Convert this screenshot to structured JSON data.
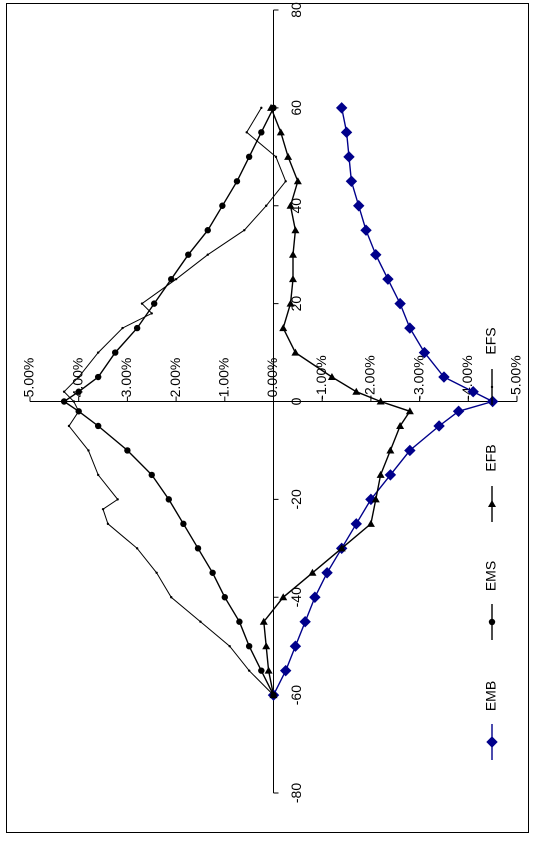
{
  "chart_data": {
    "type": "line",
    "orientation": "rotated-90-clockwise",
    "x_axis": {
      "min": -80,
      "max": 80,
      "ticks": [
        -80,
        -60,
        -40,
        -20,
        0,
        20,
        40,
        60,
        80
      ],
      "tick_labels": [
        "-80",
        "-60",
        "-40",
        "-20",
        "0",
        "20",
        "40",
        "60",
        "80"
      ]
    },
    "y_axis": {
      "min": -0.05,
      "max": 0.05,
      "ticks": [
        0.05,
        0.04,
        0.03,
        0.02,
        0.01,
        0.0,
        -0.01,
        -0.02,
        -0.03,
        -0.04,
        -0.05
      ],
      "tick_labels": [
        "5.00%",
        "4.00%",
        "3.00%",
        "2.00%",
        "1.00%",
        "0.00%",
        "-1.00%",
        "-2.00%",
        "-3.00%",
        "-4.00%",
        "-5.00%"
      ]
    },
    "grid": false,
    "legend_position": "right",
    "series": [
      {
        "name": "EMB",
        "color": "#00008B",
        "marker": "diamond",
        "x": [
          -60,
          -55,
          -50,
          -45,
          -40,
          -35,
          -30,
          -25,
          -20,
          -15,
          -10,
          -5,
          -2,
          0,
          2,
          5,
          10,
          15,
          20,
          25,
          30,
          35,
          40,
          45,
          50,
          55,
          60
        ],
        "y": [
          0.0,
          -0.0025,
          -0.0045,
          -0.0065,
          -0.0085,
          -0.011,
          -0.014,
          -0.017,
          -0.02,
          -0.024,
          -0.028,
          -0.034,
          -0.038,
          -0.045,
          -0.041,
          -0.035,
          -0.031,
          -0.028,
          -0.026,
          -0.0235,
          -0.021,
          -0.019,
          -0.0175,
          -0.016,
          -0.0155,
          -0.015,
          -0.014
        ]
      },
      {
        "name": "EMS",
        "color": "#000000",
        "marker": "circle",
        "x": [
          -60,
          -55,
          -50,
          -45,
          -40,
          -35,
          -30,
          -25,
          -20,
          -15,
          -10,
          -5,
          -2,
          0,
          2,
          5,
          10,
          15,
          20,
          25,
          30,
          35,
          40,
          45,
          50,
          55,
          60
        ],
        "y": [
          0.0,
          0.0025,
          0.005,
          0.007,
          0.01,
          0.0125,
          0.0155,
          0.0185,
          0.0215,
          0.025,
          0.03,
          0.036,
          0.04,
          0.043,
          0.04,
          0.036,
          0.0325,
          0.028,
          0.0245,
          0.021,
          0.0175,
          0.0135,
          0.0105,
          0.0075,
          0.005,
          0.0025,
          0.0
        ]
      },
      {
        "name": "EFB",
        "color": "#000000",
        "marker": "triangle",
        "x": [
          -60,
          -55,
          -50,
          -45,
          -40,
          -35,
          -30,
          -25,
          -20,
          -15,
          -10,
          -5,
          -2,
          0,
          2,
          5,
          10,
          15,
          20,
          25,
          30,
          35,
          40,
          45,
          50,
          55,
          60
        ],
        "y": [
          0.0,
          0.001,
          0.0015,
          0.002,
          -0.002,
          -0.008,
          -0.014,
          -0.02,
          -0.021,
          -0.022,
          -0.024,
          -0.026,
          -0.028,
          -0.022,
          -0.017,
          -0.012,
          -0.0045,
          -0.002,
          -0.0035,
          -0.004,
          -0.004,
          -0.0045,
          -0.0035,
          -0.005,
          -0.003,
          -0.0015,
          0.0005
        ]
      },
      {
        "name": "EFS",
        "color": "#000000",
        "marker": "small-dot",
        "x": [
          -60,
          -55,
          -50,
          -45,
          -40,
          -35,
          -30,
          -25,
          -22,
          -20,
          -15,
          -10,
          -5,
          -2,
          0,
          2,
          5,
          10,
          15,
          18,
          20,
          25,
          30,
          35,
          40,
          45,
          50,
          55,
          60
        ],
        "y": [
          0.0,
          0.005,
          0.009,
          0.015,
          0.021,
          0.024,
          0.028,
          0.034,
          0.035,
          0.032,
          0.036,
          0.038,
          0.042,
          0.04,
          0.041,
          0.043,
          0.04,
          0.036,
          0.031,
          0.025,
          0.027,
          0.02,
          0.0135,
          0.006,
          0.0015,
          -0.0025,
          -0.0005,
          0.0055,
          0.0025
        ]
      }
    ]
  }
}
